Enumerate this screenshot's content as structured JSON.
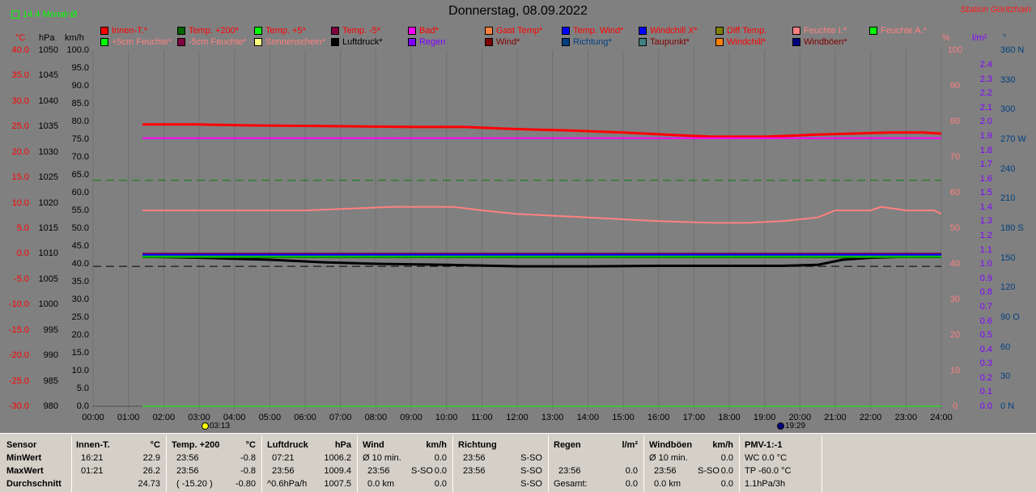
{
  "header": {
    "title": "Donnerstag, 08.09.2022",
    "station": "Station Göritzhain",
    "monat_label": "14.4 Monat-Ø"
  },
  "legend": [
    {
      "label": "Innen-T.*",
      "color": "#ff0000",
      "text_color": "#ff0000"
    },
    {
      "label": "Temp. +200*",
      "color": "#006400",
      "text_color": "#ff0000"
    },
    {
      "label": "Temp. +5*",
      "color": "#00ff00",
      "text_color": "#ff0000"
    },
    {
      "label": "Temp. -5*",
      "color": "#800040",
      "text_color": "#ff0000"
    },
    {
      "label": "Bad*",
      "color": "#ff00ff",
      "text_color": "#ff0000"
    },
    {
      "label": "Gast Temp*",
      "color": "#ff8040",
      "text_color": "#ff0000"
    },
    {
      "label": "Temp. Wind*",
      "color": "#0000ff",
      "text_color": "#ff0000"
    },
    {
      "label": "Windchill X*",
      "color": "#0000ff",
      "text_color": "#ff0000"
    },
    {
      "label": "Diff Temp.",
      "color": "#808000",
      "text_color": "#ff0000"
    },
    {
      "label": "Feuchte I.*",
      "color": "#ff8080",
      "text_color": "#ff8080"
    },
    {
      "label": "Feuchte A.*",
      "color": "#00ff00",
      "text_color": "#ff8080"
    },
    {
      "label": "+5cm Feuchte*",
      "color": "#00ff00",
      "text_color": "#ff8080"
    },
    {
      "label": "-5cm Feuchte*",
      "color": "#800040",
      "text_color": "#ff8080"
    },
    {
      "label": "Sonnenschein*",
      "color": "#ffff80",
      "text_color": "#ff8080"
    },
    {
      "label": "Luftdruck*",
      "color": "#000000",
      "text_color": "#000000"
    },
    {
      "label": "Regen",
      "color": "#8000ff",
      "text_color": "#8000ff"
    },
    {
      "label": "Wind*",
      "color": "#800000",
      "text_color": "#800000"
    },
    {
      "label": "Richtung*",
      "color": "#004080",
      "text_color": "#004080"
    },
    {
      "label": "Taupunkt*",
      "color": "#408080",
      "text_color": "#800000"
    },
    {
      "label": "Windchill*",
      "color": "#ff8000",
      "text_color": "#ff0000"
    },
    {
      "label": "Windböen*",
      "color": "#000080",
      "text_color": "#800000"
    }
  ],
  "axes": {
    "temp": {
      "unit": "°C",
      "ticks": [
        "40.0",
        "35.0",
        "30.0",
        "25.0",
        "20.0",
        "15.0",
        "10.0",
        "5.0",
        "0.0",
        "-5.0",
        "-10.0",
        "-15.0",
        "-20.0",
        "-25.0",
        "-30.0"
      ],
      "color": "#ff0000"
    },
    "pressure": {
      "unit": "hPa",
      "ticks": [
        "1050",
        "1045",
        "1040",
        "1035",
        "1030",
        "1025",
        "1020",
        "1015",
        "1010",
        "1005",
        "1000",
        "995",
        "990",
        "985",
        "980"
      ],
      "color": "#000000"
    },
    "speed": {
      "unit": "km/h",
      "ticks": [
        "100.0",
        "95.0",
        "90.0",
        "85.0",
        "80.0",
        "75.0",
        "70.0",
        "65.0",
        "60.0",
        "55.0",
        "50.0",
        "45.0",
        "40.0",
        "35.0",
        "30.0",
        "25.0",
        "20.0",
        "15.0",
        "10.0",
        "5.0",
        "0.0"
      ],
      "color": "#000000"
    },
    "humidity": {
      "unit": "%",
      "ticks": [
        "100",
        "90",
        "80",
        "70",
        "60",
        "50",
        "40",
        "30",
        "20",
        "10",
        "0"
      ],
      "color": "#ff8080"
    },
    "rain": {
      "unit": "l/m²",
      "ticks": [
        "2.4",
        "2.3",
        "2.2",
        "2.1",
        "2.0",
        "1.9",
        "1.8",
        "1.7",
        "1.6",
        "1.5",
        "1.4",
        "1.3",
        "1.2",
        "1.1",
        "1.0",
        "0.9",
        "0.8",
        "0.7",
        "0.6",
        "0.5",
        "0.4",
        "0.3",
        "0.2",
        "0.1",
        "0.0"
      ],
      "color": "#8000ff"
    },
    "direction": {
      "unit": "°",
      "ticks": [
        "360 N",
        "330",
        "300",
        "270 W",
        "240",
        "210",
        "180 S",
        "150",
        "120",
        "90 O",
        "60",
        "30",
        "0 N"
      ],
      "color": "#004080"
    },
    "time": {
      "ticks": [
        "00:00",
        "01:00",
        "02:00",
        "03:00",
        "04:00",
        "05:00",
        "06:00",
        "07:00",
        "08:00",
        "09:00",
        "10:00",
        "11:00",
        "12:00",
        "13:00",
        "14:00",
        "15:00",
        "16:00",
        "17:00",
        "18:00",
        "19:00",
        "20:00",
        "21:00",
        "22:00",
        "23:00",
        "24:00"
      ]
    }
  },
  "events": {
    "sunrise": "03:13",
    "sunset": "19:29"
  },
  "chart_data": {
    "type": "line",
    "x_unit": "hour",
    "xlim": [
      0,
      24
    ],
    "series": [
      {
        "name": "Innen-T.*",
        "axis": "temp",
        "color": "#ff0000",
        "width": 3,
        "x": [
          1.4,
          3.0,
          4.5,
          6.5,
          9.0,
          10.5,
          11.5,
          12.5,
          13.5,
          15.0,
          16.5,
          17.5,
          19.0,
          19.8,
          20.5,
          21.5,
          22.5,
          23.5,
          24.0
        ],
        "y": [
          25.4,
          25.4,
          25.2,
          25.1,
          24.9,
          24.9,
          24.6,
          24.4,
          24.2,
          23.8,
          23.3,
          23.0,
          23.0,
          23.2,
          23.4,
          23.6,
          23.8,
          23.8,
          23.6
        ]
      },
      {
        "name": "Bad*",
        "axis": "temp",
        "color": "#ff00ff",
        "width": 2,
        "x": [
          1.4,
          24.0
        ],
        "y": [
          22.7,
          22.7
        ]
      },
      {
        "name": "Feuchte I.*",
        "axis": "humidity",
        "color": "#ff8080",
        "width": 2,
        "x": [
          1.4,
          4.0,
          6.0,
          8.5,
          10.2,
          11.0,
          12.0,
          14.0,
          16.0,
          17.5,
          18.5,
          19.5,
          20.5,
          21.0,
          22.0,
          22.3,
          23.0,
          23.8,
          24.0
        ],
        "y": [
          55,
          55,
          55,
          56,
          56,
          55,
          54,
          53,
          52,
          51.5,
          51.5,
          52,
          53,
          55,
          55,
          56,
          55,
          55,
          54
        ]
      },
      {
        "name": "Luftdruck*",
        "axis": "pressure",
        "color": "#000000",
        "width": 3,
        "x": [
          1.4,
          3.0,
          5.0,
          6.5,
          8.0,
          10.0,
          12.0,
          14.0,
          16.0,
          18.0,
          19.5,
          20.5,
          21.2,
          22.0,
          23.0,
          24.0
        ],
        "y": [
          1009.4,
          1009.2,
          1008.8,
          1008.3,
          1008.0,
          1007.8,
          1007.5,
          1007.5,
          1007.6,
          1007.6,
          1007.6,
          1007.8,
          1008.8,
          1009.2,
          1009.4,
          1009.4
        ]
      },
      {
        "name": "Windchill*",
        "axis": "temp",
        "color": "#800040",
        "width": 2,
        "x": [
          1.4,
          24.0
        ],
        "y": [
          0.0,
          0.0
        ]
      },
      {
        "name": "Taupunkt*",
        "axis": "temp",
        "color": "#408080",
        "width": 2,
        "x": [
          1.4,
          24.0
        ],
        "y": [
          -0.4,
          -0.4
        ]
      },
      {
        "name": "Temp. Wind*",
        "axis": "temp",
        "color": "#0000ff",
        "width": 2,
        "x": [
          1.4,
          24.0
        ],
        "y": [
          -0.2,
          -0.2
        ]
      },
      {
        "name": "Temp. +5*",
        "axis": "temp",
        "color": "#00c000",
        "width": 2,
        "x": [
          1.4,
          24.0
        ],
        "y": [
          -0.6,
          -0.6
        ]
      },
      {
        "name": "Temp. +200*",
        "axis": "temp",
        "color": "#008000",
        "width": 1,
        "x": [
          1.4,
          24.0
        ],
        "y": [
          -0.8,
          -0.8
        ]
      },
      {
        "name": "Regen",
        "axis": "rain",
        "color": "#00ff00",
        "width": 1,
        "x": [
          1.4,
          24.0
        ],
        "y": [
          0.0,
          0.0
        ]
      }
    ],
    "reference_lines": [
      {
        "axis": "temp",
        "value": 14.4,
        "color": "#008000",
        "dash": "10,6"
      },
      {
        "axis": "temp",
        "value": -2.5,
        "color": "#000000",
        "dash": "10,6"
      }
    ]
  },
  "stats": {
    "rows": [
      "Sensor",
      "MinWert",
      "MaxWert",
      "Durchschnitt"
    ],
    "innen": {
      "head": "Innen-T.",
      "unit": "°C",
      "min_t": "16:21",
      "min_v": "22.9",
      "max_t": "01:21",
      "max_v": "26.2",
      "avg_v": "24.73"
    },
    "temp200": {
      "head": "Temp. +200",
      "unit": "°C",
      "min_t": "23:56",
      "min_v": "-0.8",
      "max_t": "23:56",
      "max_v": "-0.8",
      "avg_t": "( -15.20 )",
      "avg_v": "-0.80"
    },
    "luft": {
      "head": "Luftdruck",
      "unit": "hPa",
      "min_t": "07:21",
      "min_v": "1006.2",
      "max_t": "23:56",
      "max_v": "1009.4",
      "avg_t": "^0.6hPa/h",
      "avg_v": "1007.5"
    },
    "wind": {
      "head": "Wind",
      "unit": "km/h",
      "min_t": "Ø 10 min.",
      "min_v": "0.0",
      "max_t": "23:56",
      "max_d": "S-SO",
      "max_v": "0.0",
      "avg_t": "0.0 km",
      "avg_v": "0.0"
    },
    "richtung": {
      "head": "Richtung",
      "min_t": "23:56",
      "min_v": "S-SO",
      "max_t": "23:56",
      "max_v": "S-SO",
      "avg_v": "S-SO"
    },
    "regen": {
      "head": "Regen",
      "unit": "l/m²",
      "max_t": "23:56",
      "max_v": "0.0",
      "avg_t": "Gesamt:",
      "avg_v": "0.0"
    },
    "boeen": {
      "head": "Windböen",
      "unit": "km/h",
      "min_t": "Ø 10 min.",
      "min_v": "0.0",
      "max_t": "23:56",
      "max_d": "S-SO",
      "max_v": "0.0",
      "avg_t": "0.0 km",
      "avg_v": "0.0"
    },
    "pmv": {
      "head": "PMV-1:-1",
      "line1": "WC 0.0 °C",
      "line2": "TP -60.0 °C",
      "line3": "1.1hPa/3h"
    }
  }
}
